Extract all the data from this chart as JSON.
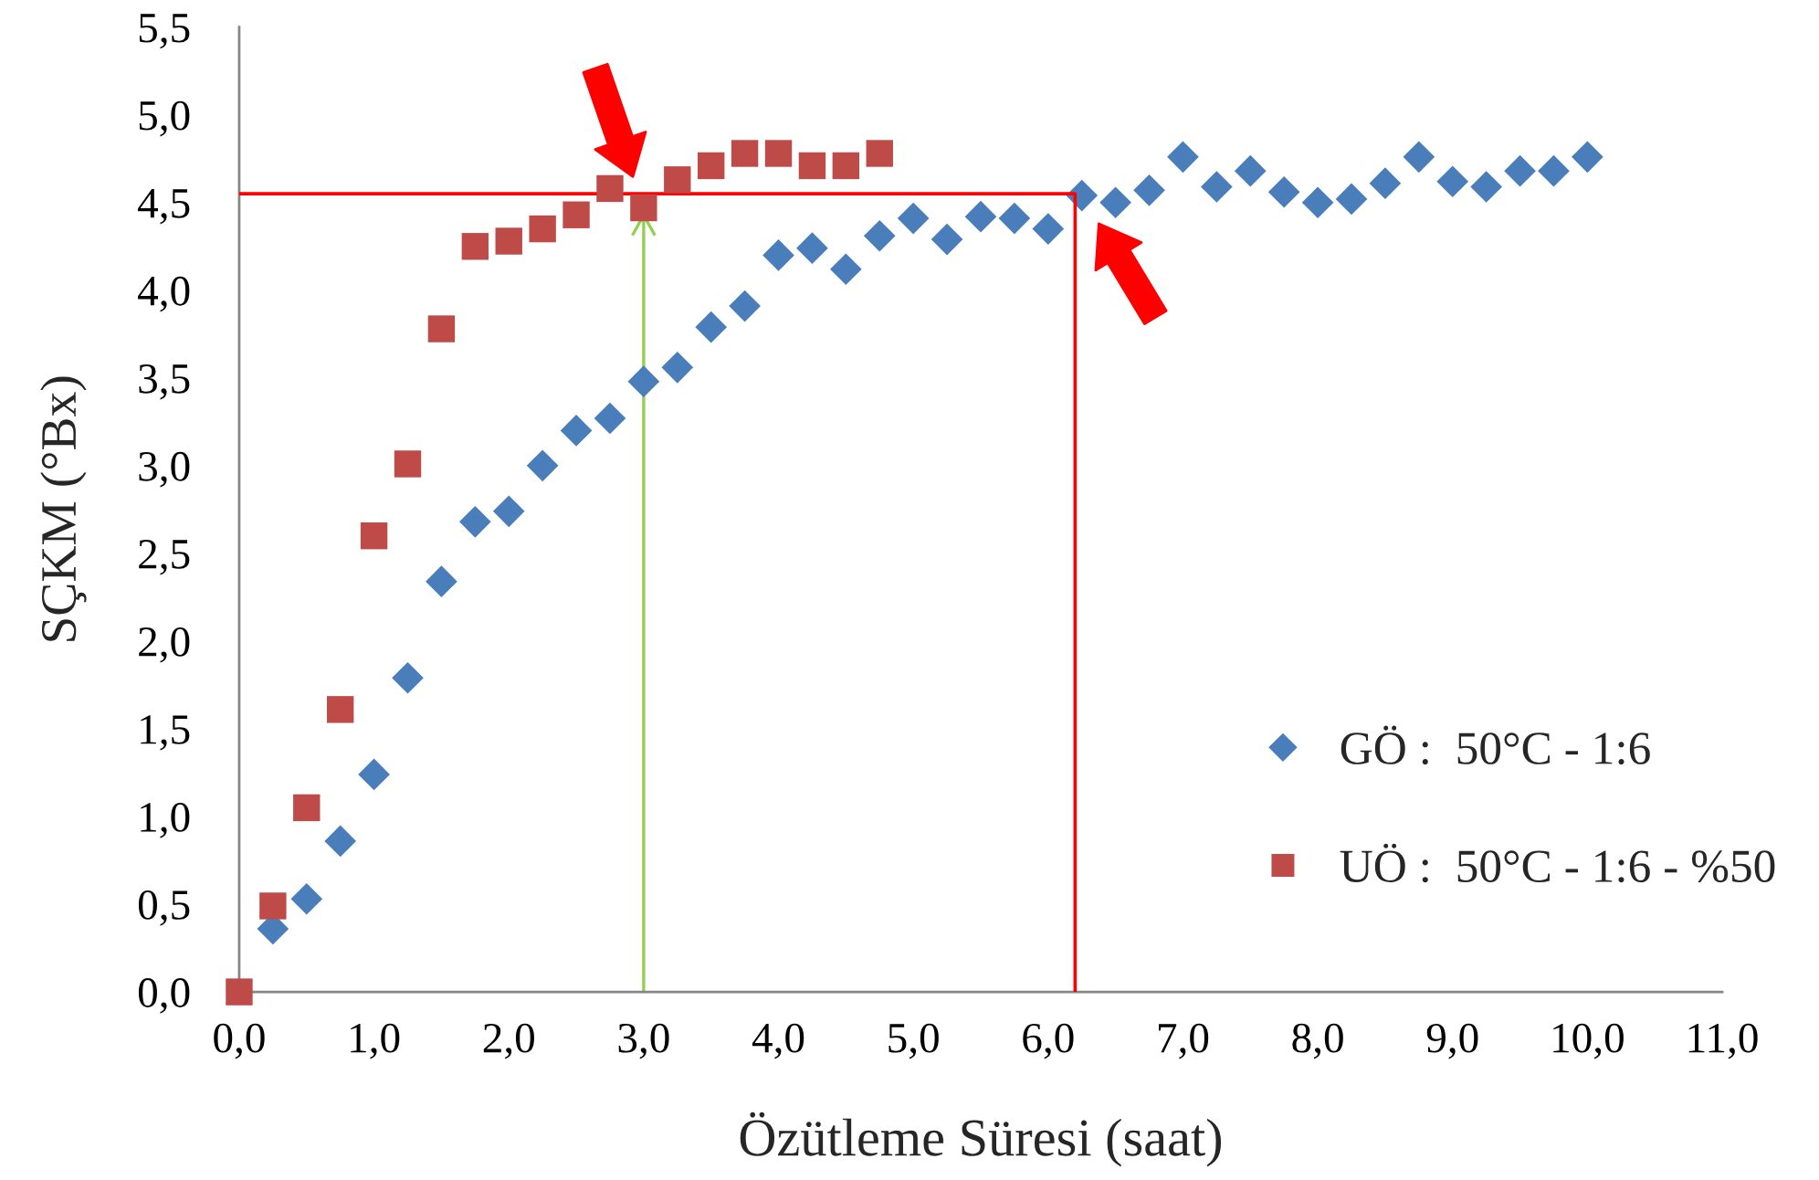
{
  "chart_data": {
    "type": "scatter",
    "xlabel": "Özütleme Süresi (saat)",
    "ylabel": "SÇKM (°Bx)",
    "xlim": [
      0,
      11
    ],
    "ylim": [
      0,
      5.5
    ],
    "xticks": [
      {
        "value": 0,
        "label": "0,0"
      },
      {
        "value": 1,
        "label": "1,0"
      },
      {
        "value": 2,
        "label": "2,0"
      },
      {
        "value": 3,
        "label": "3,0"
      },
      {
        "value": 4,
        "label": "4,0"
      },
      {
        "value": 5,
        "label": "5,0"
      },
      {
        "value": 6,
        "label": "6,0"
      },
      {
        "value": 7,
        "label": "7,0"
      },
      {
        "value": 8,
        "label": "8,0"
      },
      {
        "value": 9,
        "label": "9,0"
      },
      {
        "value": 10,
        "label": "10,0"
      },
      {
        "value": 11,
        "label": "11,0"
      }
    ],
    "yticks": [
      {
        "value": 0,
        "label": "0,0"
      },
      {
        "value": 0.5,
        "label": "0,5"
      },
      {
        "value": 1,
        "label": "1,0"
      },
      {
        "value": 1.5,
        "label": "1,5"
      },
      {
        "value": 2,
        "label": "2,0"
      },
      {
        "value": 2.5,
        "label": "2,5"
      },
      {
        "value": 3,
        "label": "3,0"
      },
      {
        "value": 3.5,
        "label": "3,5"
      },
      {
        "value": 4,
        "label": "4,0"
      },
      {
        "value": 4.5,
        "label": "4,5"
      },
      {
        "value": 5,
        "label": "5,0"
      },
      {
        "value": 5.5,
        "label": "5,5"
      }
    ],
    "grid": false,
    "legend": "lower right",
    "ref_lines": [
      {
        "axis": "x",
        "value": 3.0,
        "color": "#92d050",
        "line_style": "solid"
      }
    ],
    "series": [
      {
        "name": "GÖ :  50°C - 1:6",
        "marker": "diamond",
        "color": "#4a7ebb",
        "x": [
          0.25,
          0.5,
          0.75,
          1.0,
          1.25,
          1.5,
          1.75,
          2.0,
          2.25,
          2.5,
          2.75,
          3.0,
          3.25,
          3.5,
          3.75,
          4.0,
          4.25,
          4.5,
          4.75,
          5.0,
          5.25,
          5.5,
          5.75,
          6.0,
          6.25,
          6.5,
          6.75,
          7.0,
          7.25,
          7.5,
          7.75,
          8.0,
          8.25,
          8.5,
          8.75,
          9.0,
          9.25,
          9.5,
          9.75,
          10.0
        ],
        "values": [
          0.36,
          0.53,
          0.86,
          1.24,
          1.79,
          2.34,
          2.68,
          2.74,
          3.0,
          3.2,
          3.27,
          3.48,
          3.56,
          3.79,
          3.91,
          4.2,
          4.24,
          4.12,
          4.31,
          4.41,
          4.29,
          4.42,
          4.41,
          4.35,
          4.54,
          4.5,
          4.57,
          4.76,
          4.59,
          4.68,
          4.56,
          4.5,
          4.52,
          4.61,
          4.76,
          4.62,
          4.59,
          4.68,
          4.68,
          4.76
        ]
      },
      {
        "type": "line",
        "color": "#ff0000",
        "marker": "none",
        "line_style": "solid",
        "x": [
          0.0,
          6.2,
          6.2
        ],
        "values": [
          4.55,
          4.55,
          0.0
        ]
      },
      {
        "name": "UÖ :  50°C - 1:6 - %50",
        "marker": "square",
        "color": "#be4b48",
        "x": [
          0.0,
          0.25,
          0.5,
          0.75,
          1.0,
          1.25,
          1.5,
          1.75,
          2.0,
          2.25,
          2.5,
          2.75,
          3.0,
          3.25,
          3.5,
          3.75,
          4.0,
          4.25,
          4.5,
          4.75
        ],
        "values": [
          0.0,
          0.49,
          1.05,
          1.61,
          2.6,
          3.01,
          3.78,
          4.25,
          4.28,
          4.35,
          4.43,
          4.58,
          4.47,
          4.63,
          4.71,
          4.78,
          4.78,
          4.71,
          4.71,
          4.78
        ]
      }
    ]
  }
}
